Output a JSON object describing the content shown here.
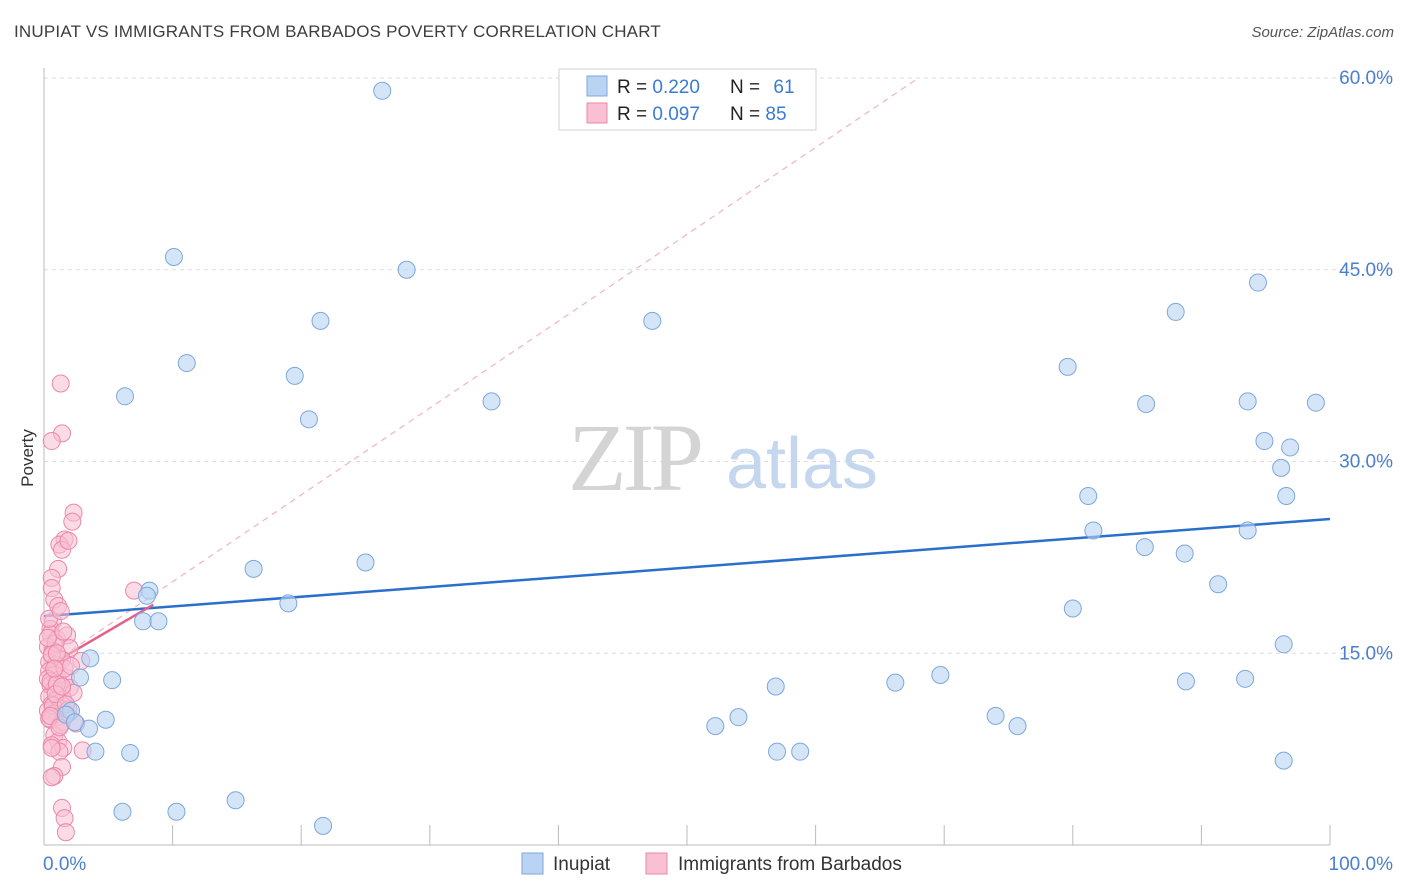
{
  "title": "INUPIAT VS IMMIGRANTS FROM BARBADOS POVERTY CORRELATION CHART",
  "source": "Source: ZipAtlas.com",
  "watermark": {
    "zip": "ZIP",
    "atlas": "atlas"
  },
  "colors": {
    "blue_fill": "#b9d3f3",
    "blue_stroke": "#7ea7dc",
    "blue_line": "#2a6fcc",
    "pink_fill": "#f8c0d2",
    "pink_stroke": "#ec87a8",
    "pink_line": "#e5608a",
    "axis_label": "#4a7fcf",
    "grid": "#dddddd",
    "watermark_zip": "#d4d4d4",
    "watermark_atlas": "#c5d7ee"
  },
  "legend": {
    "rows": [
      {
        "r_label": "R = ",
        "r_value": "0.220",
        "n_label": "N = ",
        "n_value": "61",
        "series": "blue"
      },
      {
        "r_label": "R = ",
        "r_value": "0.097",
        "n_label": "N = ",
        "n_value": "85",
        "series": "pink"
      }
    ]
  },
  "bottom_legend": [
    {
      "label": "Inupiat",
      "series": "blue"
    },
    {
      "label": "Immigrants from Barbados",
      "series": "pink"
    }
  ],
  "chart_data": {
    "type": "scatter",
    "title": "INUPIAT VS IMMIGRANTS FROM BARBADOS POVERTY CORRELATION CHART",
    "ylabel": "Poverty",
    "xlabel": "",
    "xlim": [
      0,
      100
    ],
    "ylim": [
      0,
      60
    ],
    "x_tick_labels": [
      {
        "value": 0,
        "label": "0.0%"
      },
      {
        "value": 100,
        "label": "100.0%"
      }
    ],
    "y_tick_labels": [
      {
        "value": 15,
        "label": "15.0%"
      },
      {
        "value": 30,
        "label": "30.0%"
      },
      {
        "value": 45,
        "label": "45.0%"
      },
      {
        "value": 60,
        "label": "60.0%"
      }
    ],
    "series": [
      {
        "name": "Inupiat",
        "color": "blue",
        "trend": {
          "x": [
            0,
            100
          ],
          "y": [
            17.9,
            25.5
          ]
        },
        "points": [
          [
            26.3,
            59.0
          ],
          [
            10.1,
            46.0
          ],
          [
            28.2,
            45.0
          ],
          [
            21.5,
            41.0
          ],
          [
            47.3,
            41.0
          ],
          [
            11.1,
            37.7
          ],
          [
            19.5,
            36.7
          ],
          [
            6.3,
            35.1
          ],
          [
            20.6,
            33.3
          ],
          [
            34.8,
            34.7
          ],
          [
            79.6,
            37.4
          ],
          [
            88.0,
            41.7
          ],
          [
            94.4,
            44.0
          ],
          [
            85.7,
            34.5
          ],
          [
            93.6,
            34.7
          ],
          [
            94.9,
            31.6
          ],
          [
            96.9,
            31.1
          ],
          [
            98.9,
            34.6
          ],
          [
            96.2,
            29.5
          ],
          [
            96.6,
            27.3
          ],
          [
            81.6,
            24.6
          ],
          [
            85.6,
            23.3
          ],
          [
            88.7,
            22.8
          ],
          [
            93.6,
            24.6
          ],
          [
            91.3,
            20.4
          ],
          [
            81.2,
            27.3
          ],
          [
            16.3,
            21.6
          ],
          [
            25.0,
            22.1
          ],
          [
            19.0,
            18.9
          ],
          [
            8.2,
            19.9
          ],
          [
            8.0,
            19.5
          ],
          [
            7.7,
            17.5
          ],
          [
            8.9,
            17.5
          ],
          [
            3.6,
            14.6
          ],
          [
            5.3,
            12.9
          ],
          [
            2.8,
            13.1
          ],
          [
            2.1,
            10.5
          ],
          [
            4.8,
            9.8
          ],
          [
            3.5,
            9.1
          ],
          [
            4.0,
            7.3
          ],
          [
            6.7,
            7.2
          ],
          [
            56.9,
            12.4
          ],
          [
            58.8,
            7.3
          ],
          [
            57.0,
            7.3
          ],
          [
            66.2,
            12.7
          ],
          [
            69.7,
            13.3
          ],
          [
            80.0,
            18.5
          ],
          [
            74.0,
            10.1
          ],
          [
            75.7,
            9.3
          ],
          [
            88.8,
            12.8
          ],
          [
            93.4,
            13.0
          ],
          [
            96.4,
            15.7
          ],
          [
            96.4,
            6.6
          ],
          [
            52.2,
            9.3
          ],
          [
            14.9,
            3.5
          ],
          [
            6.1,
            2.6
          ],
          [
            10.3,
            2.6
          ],
          [
            21.7,
            1.5
          ],
          [
            54.0,
            10.0
          ],
          [
            1.7,
            10.2
          ],
          [
            2.4,
            9.6
          ]
        ]
      },
      {
        "name": "Immigrants from Barbados",
        "color": "pink",
        "trend": {
          "x": [
            0,
            8.5
          ],
          "y": [
            13.8,
            18.8
          ],
          "dash_x": [
            0,
            68.0
          ],
          "dash_y": [
            13.8,
            60.0
          ]
        },
        "points": [
          [
            1.3,
            36.1
          ],
          [
            1.4,
            32.2
          ],
          [
            0.6,
            31.6
          ],
          [
            2.3,
            26.0
          ],
          [
            2.2,
            25.3
          ],
          [
            1.6,
            23.9
          ],
          [
            1.2,
            23.5
          ],
          [
            1.4,
            23.1
          ],
          [
            1.9,
            23.8
          ],
          [
            1.1,
            21.6
          ],
          [
            0.6,
            20.9
          ],
          [
            7.0,
            19.9
          ],
          [
            0.6,
            20.1
          ],
          [
            0.8,
            19.2
          ],
          [
            1.1,
            18.7
          ],
          [
            0.7,
            17.5
          ],
          [
            0.5,
            16.9
          ],
          [
            0.5,
            16.5
          ],
          [
            1.0,
            16.1
          ],
          [
            1.8,
            16.4
          ],
          [
            0.3,
            15.5
          ],
          [
            0.7,
            15.2
          ],
          [
            2.0,
            15.4
          ],
          [
            0.6,
            14.8
          ],
          [
            1.2,
            14.6
          ],
          [
            0.4,
            14.3
          ],
          [
            0.9,
            14.1
          ],
          [
            1.4,
            14.5
          ],
          [
            2.9,
            14.4
          ],
          [
            0.4,
            13.6
          ],
          [
            0.8,
            13.3
          ],
          [
            0.3,
            13.0
          ],
          [
            1.1,
            12.9
          ],
          [
            1.7,
            13.1
          ],
          [
            0.5,
            12.5
          ],
          [
            0.8,
            12.2
          ],
          [
            1.4,
            12.1
          ],
          [
            2.0,
            12.3
          ],
          [
            0.4,
            11.6
          ],
          [
            0.9,
            11.3
          ],
          [
            1.5,
            11.4
          ],
          [
            0.6,
            11.0
          ],
          [
            1.2,
            10.7
          ],
          [
            0.3,
            10.5
          ],
          [
            0.7,
            10.3
          ],
          [
            1.1,
            10.0
          ],
          [
            1.8,
            10.2
          ],
          [
            0.5,
            9.8
          ],
          [
            1.4,
            9.6
          ],
          [
            2.5,
            9.5
          ],
          [
            0.8,
            8.6
          ],
          [
            1.1,
            8.1
          ],
          [
            0.6,
            7.8
          ],
          [
            1.5,
            7.6
          ],
          [
            1.2,
            7.3
          ],
          [
            3.0,
            7.4
          ],
          [
            1.4,
            6.1
          ],
          [
            0.8,
            5.4
          ],
          [
            0.6,
            5.3
          ],
          [
            1.4,
            2.9
          ],
          [
            1.6,
            2.1
          ],
          [
            1.7,
            1.0
          ],
          [
            0.4,
            17.7
          ],
          [
            1.3,
            18.3
          ],
          [
            0.9,
            15.8
          ],
          [
            1.6,
            13.8
          ],
          [
            0.5,
            12.8
          ],
          [
            1.0,
            12.6
          ],
          [
            2.3,
            11.9
          ],
          [
            0.7,
            10.9
          ],
          [
            1.9,
            10.6
          ],
          [
            0.4,
            9.9
          ],
          [
            1.3,
            9.4
          ],
          [
            2.1,
            14.0
          ],
          [
            0.6,
            14.9
          ],
          [
            1.0,
            15.0
          ],
          [
            0.3,
            16.2
          ],
          [
            1.5,
            16.7
          ],
          [
            0.9,
            11.8
          ],
          [
            1.7,
            11.0
          ],
          [
            0.5,
            10.1
          ],
          [
            1.2,
            9.2
          ],
          [
            0.8,
            13.8
          ],
          [
            1.4,
            12.4
          ],
          [
            0.6,
            7.6
          ]
        ]
      }
    ]
  }
}
